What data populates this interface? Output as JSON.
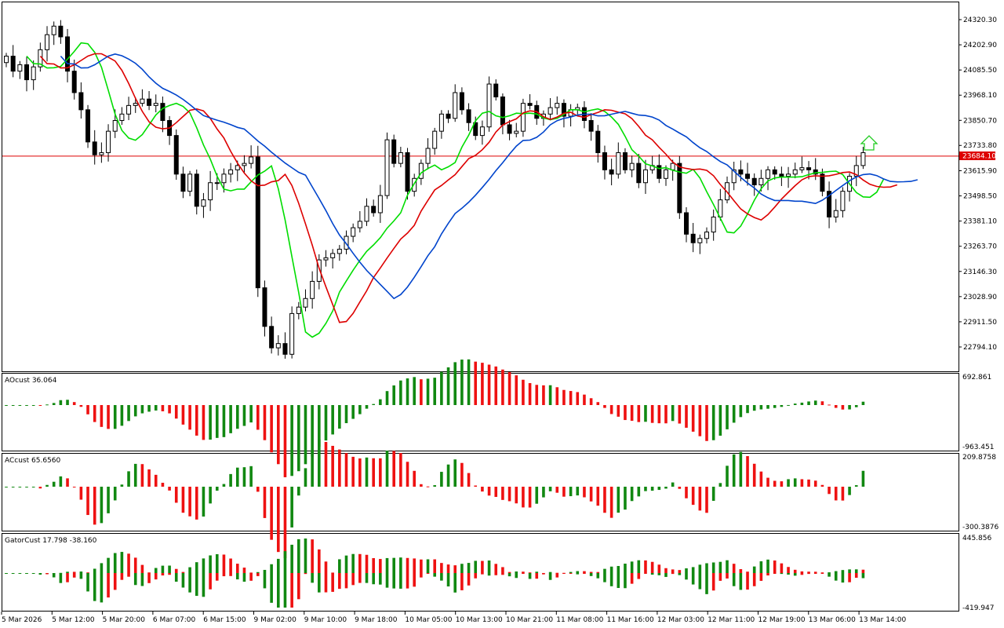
{
  "price_panel": {
    "y_ticks": [
      "24320.30",
      "24202.90",
      "24085.50",
      "23968.10",
      "23850.70",
      "23733.80",
      "23615.90",
      "23498.50",
      "23381.10",
      "23263.70",
      "23146.30",
      "23028.90",
      "22911.50",
      "22794.10"
    ],
    "y_tick_values": [
      24320.3,
      24202.9,
      24085.5,
      23968.1,
      23850.7,
      23733.8,
      23615.9,
      23498.5,
      23381.1,
      23263.7,
      23146.3,
      23028.9,
      22911.5,
      22794.1
    ],
    "current_price_label": "23684.10",
    "current_price": 23684.1,
    "colors": {
      "bull_body": "#ffffff",
      "bear_body": "#000000",
      "green_line": "#00dd00",
      "red_line": "#dd0000",
      "blue_line": "#0044cc",
      "price_line": "#dd0000",
      "arrow": "#00cc00"
    }
  },
  "ao_panel": {
    "title": "AOcust 36.064",
    "max_label": "692.861",
    "min_label": "-963.451"
  },
  "ac_panel": {
    "title": "ACcust 65.6560",
    "max_label": "209.8758",
    "min_label": "-300.3876"
  },
  "gator_panel": {
    "title": "GatorCust 17.798 -38.160",
    "max_label": "445.856",
    "min_label": "-419.947"
  },
  "x_axis": {
    "labels": [
      "5 Mar 2026",
      "5 Mar 12:00",
      "5 Mar 20:00",
      "6 Mar 07:00",
      "6 Mar 15:00",
      "9 Mar 02:00",
      "9 Mar 10:00",
      "9 Mar 18:00",
      "10 Mar 05:00",
      "10 Mar 13:00",
      "10 Mar 21:00",
      "11 Mar 08:00",
      "11 Mar 16:00",
      "12 Mar 03:00",
      "12 Mar 11:00",
      "12 Mar 19:00",
      "13 Mar 06:00",
      "13 Mar 14:00"
    ]
  },
  "chart_data": [
    {
      "type": "candlestick",
      "title": "",
      "ylim": [
        22700,
        24380
      ],
      "close": [
        24150,
        24080,
        24110,
        24040,
        24100,
        24180,
        24250,
        24290,
        24240,
        24080,
        23980,
        23900,
        23750,
        23690,
        23700,
        23800,
        23850,
        23880,
        23920,
        23930,
        23950,
        23920,
        23930,
        23850,
        23780,
        23600,
        23520,
        23600,
        23450,
        23480,
        23560,
        23560,
        23600,
        23620,
        23640,
        23650,
        23680,
        23070,
        22890,
        22790,
        22810,
        22760,
        22950,
        22980,
        23020,
        23100,
        23200,
        23210,
        23230,
        23250,
        23310,
        23350,
        23380,
        23450,
        23420,
        23500,
        23760,
        23650,
        23700,
        23520,
        23580,
        23650,
        23720,
        23800,
        23880,
        23860,
        23980,
        23900,
        23840,
        23780,
        23820,
        24020,
        23960,
        23830,
        23790,
        23800,
        23930,
        23920,
        23860,
        23880,
        23910,
        23930,
        23870,
        23900,
        23910,
        23850,
        23800,
        23700,
        23620,
        23600,
        23700,
        23620,
        23650,
        23560,
        23620,
        23640,
        23580,
        23620,
        23650,
        23420,
        23320,
        23280,
        23300,
        23330,
        23400,
        23480,
        23560,
        23620,
        23600,
        23580,
        23550,
        23580,
        23620,
        23600,
        23590,
        23600,
        23620,
        23630,
        23620,
        23600,
        23520,
        23400,
        23430,
        23520,
        23590,
        23640,
        23700
      ]
    },
    {
      "type": "bar",
      "title": "AOcust 36.064",
      "ylim": [
        -963.451,
        692.861
      ]
    },
    {
      "type": "bar",
      "title": "ACcust 65.6560",
      "ylim": [
        -300.3876,
        209.8758
      ]
    },
    {
      "type": "bar",
      "title": "GatorCust 17.798 -38.160",
      "ylim": [
        -419.947,
        445.856
      ]
    }
  ]
}
